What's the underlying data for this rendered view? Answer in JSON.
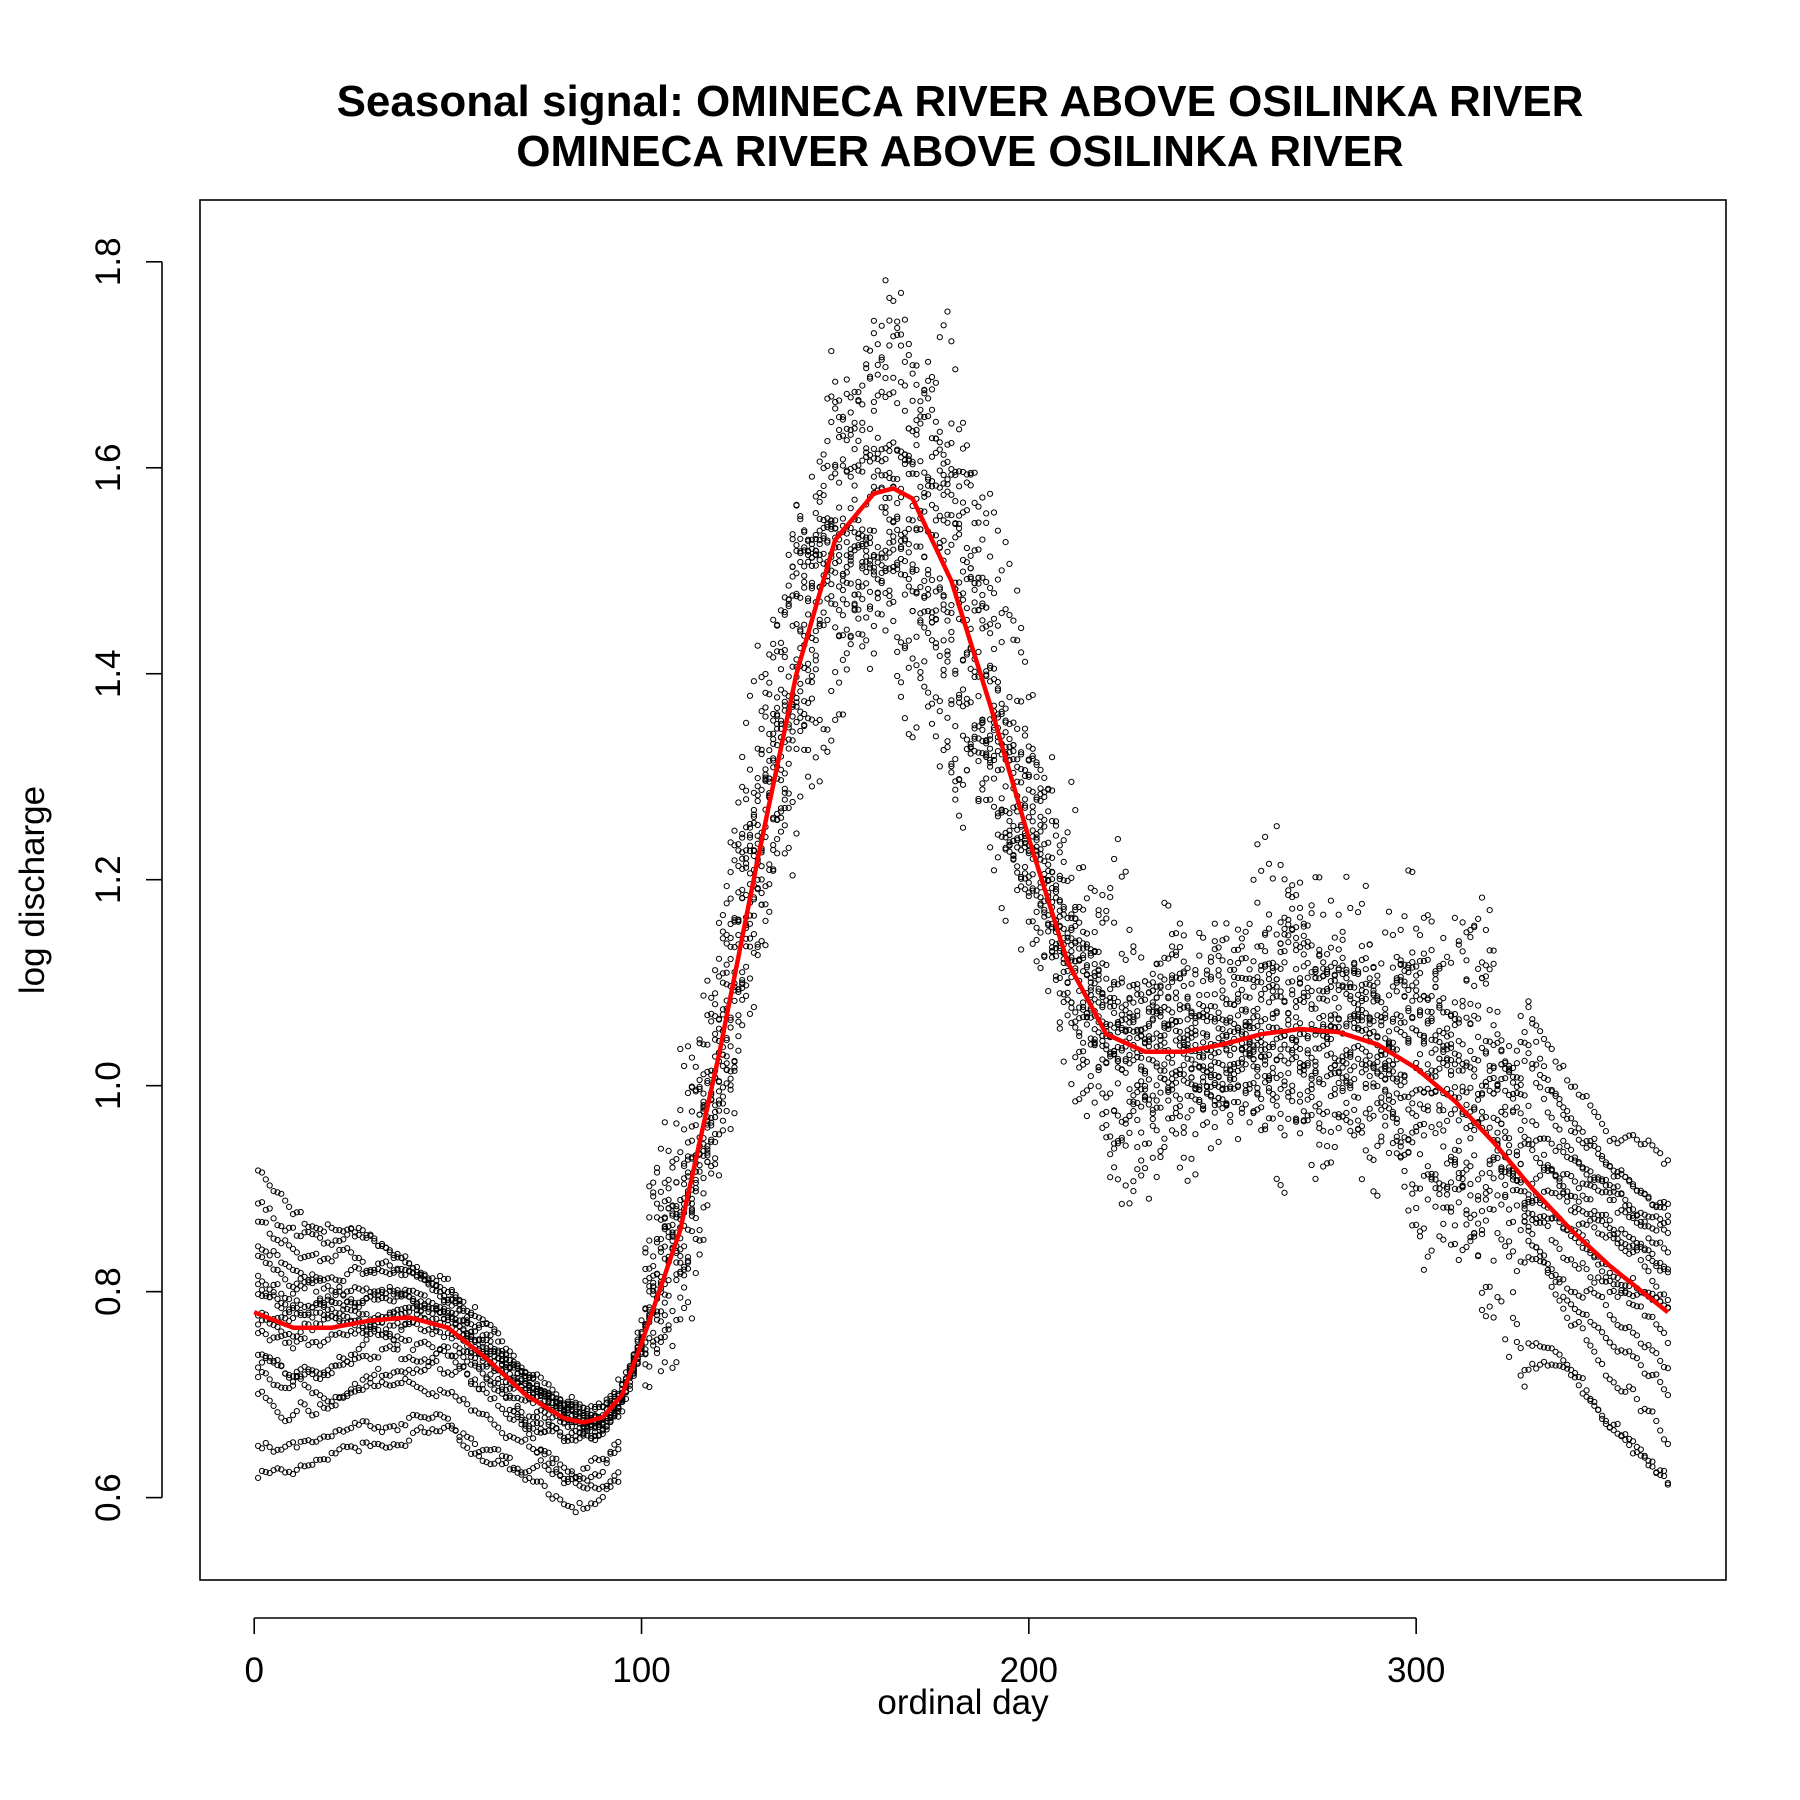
{
  "chart_data": {
    "type": "scatter",
    "title": "Seasonal signal: OMINECA RIVER ABOVE OSILINKA RIVER",
    "subtitle": "OMINECA RIVER ABOVE OSILINKA RIVER",
    "xlabel": "ordinal day",
    "ylabel": "log discharge",
    "xlim": [
      -14,
      380
    ],
    "ylim": [
      0.52,
      1.86
    ],
    "xticks": [
      0,
      100,
      200,
      300
    ],
    "xtick_labels": [
      "0",
      "100",
      "200",
      "300"
    ],
    "yticks": [
      0.6,
      0.8,
      1.0,
      1.2,
      1.4,
      1.6,
      1.8
    ],
    "ytick_labels": [
      "0.6",
      "0.8",
      "1.0",
      "1.2",
      "1.4",
      "1.6",
      "1.8"
    ],
    "grid": false,
    "legend": "none",
    "colors": {
      "points": "#000000",
      "smooth": "#ff0000"
    },
    "series": [
      {
        "type": "scatter",
        "marker": "open-circle",
        "description_values": "yearly daily log discharge traces",
        "years": [
          {
            "start": 0.93,
            "end": 0.93,
            "low": 0.61,
            "low_day": 0,
            "peak": 1.62,
            "peak_day": 160
          },
          {
            "start": 0.89,
            "end": 0.89,
            "low": 0.65,
            "low_day": 82,
            "peak": 1.75,
            "peak_day": 160
          },
          {
            "start": 0.87,
            "end": 0.88,
            "low": 0.66,
            "low_day": 88,
            "peak": 1.68,
            "peak_day": 158
          },
          {
            "start": 0.85,
            "end": 0.87,
            "low": 0.66,
            "low_day": 85,
            "peak": 1.6,
            "peak_day": 170
          },
          {
            "start": 0.83,
            "end": 0.86,
            "low": 0.67,
            "low_day": 80,
            "peak": 1.55,
            "peak_day": 150
          },
          {
            "start": 0.82,
            "end": 0.85,
            "low": 0.67,
            "low_day": 78,
            "peak": 1.66,
            "peak_day": 165
          },
          {
            "start": 0.81,
            "end": 0.83,
            "low": 0.68,
            "low_day": 86,
            "peak": 1.5,
            "peak_day": 175
          },
          {
            "start": 0.8,
            "end": 0.82,
            "low": 0.68,
            "low_day": 90,
            "peak": 1.58,
            "peak_day": 162
          },
          {
            "start": 0.78,
            "end": 0.8,
            "low": 0.69,
            "low_day": 84,
            "peak": 1.48,
            "peak_day": 168
          },
          {
            "start": 0.77,
            "end": 0.78,
            "low": 0.69,
            "low_day": 80,
            "peak": 1.62,
            "peak_day": 155
          },
          {
            "start": 0.76,
            "end": 0.77,
            "low": 0.7,
            "low_day": 88,
            "peak": 1.54,
            "peak_day": 172
          },
          {
            "start": 0.74,
            "end": 0.75,
            "low": 0.67,
            "low_day": 92,
            "peak": 1.44,
            "peak_day": 160
          },
          {
            "start": 0.73,
            "end": 0.72,
            "low": 0.66,
            "low_day": 86,
            "peak": 1.57,
            "peak_day": 150
          },
          {
            "start": 0.72,
            "end": 0.7,
            "low": 0.64,
            "low_day": 90,
            "peak": 1.64,
            "peak_day": 158
          },
          {
            "start": 0.7,
            "end": 0.66,
            "low": 0.63,
            "low_day": 95,
            "peak": 1.7,
            "peak_day": 163
          },
          {
            "start": 0.66,
            "end": 0.62,
            "low": 0.54,
            "low_day": 340,
            "peak": 1.52,
            "peak_day": 166
          },
          {
            "start": 0.62,
            "end": 0.62,
            "low": 0.6,
            "low_day": 102,
            "peak": 1.45,
            "peak_day": 178
          }
        ]
      },
      {
        "type": "line",
        "description_values": "smoothed seasonal signal",
        "x": [
          0,
          10,
          20,
          30,
          40,
          50,
          60,
          70,
          80,
          85,
          90,
          95,
          100,
          110,
          120,
          130,
          140,
          150,
          160,
          165,
          170,
          180,
          190,
          200,
          210,
          220,
          230,
          240,
          250,
          260,
          270,
          280,
          290,
          300,
          310,
          320,
          330,
          340,
          350,
          360,
          365
        ],
        "y": [
          0.78,
          0.765,
          0.765,
          0.772,
          0.775,
          0.765,
          0.735,
          0.7,
          0.677,
          0.673,
          0.678,
          0.7,
          0.75,
          0.86,
          1.03,
          1.22,
          1.4,
          1.53,
          1.575,
          1.58,
          1.57,
          1.49,
          1.37,
          1.24,
          1.12,
          1.05,
          1.033,
          1.033,
          1.04,
          1.05,
          1.055,
          1.052,
          1.04,
          1.017,
          0.985,
          0.945,
          0.9,
          0.86,
          0.825,
          0.795,
          0.78
        ]
      }
    ]
  }
}
